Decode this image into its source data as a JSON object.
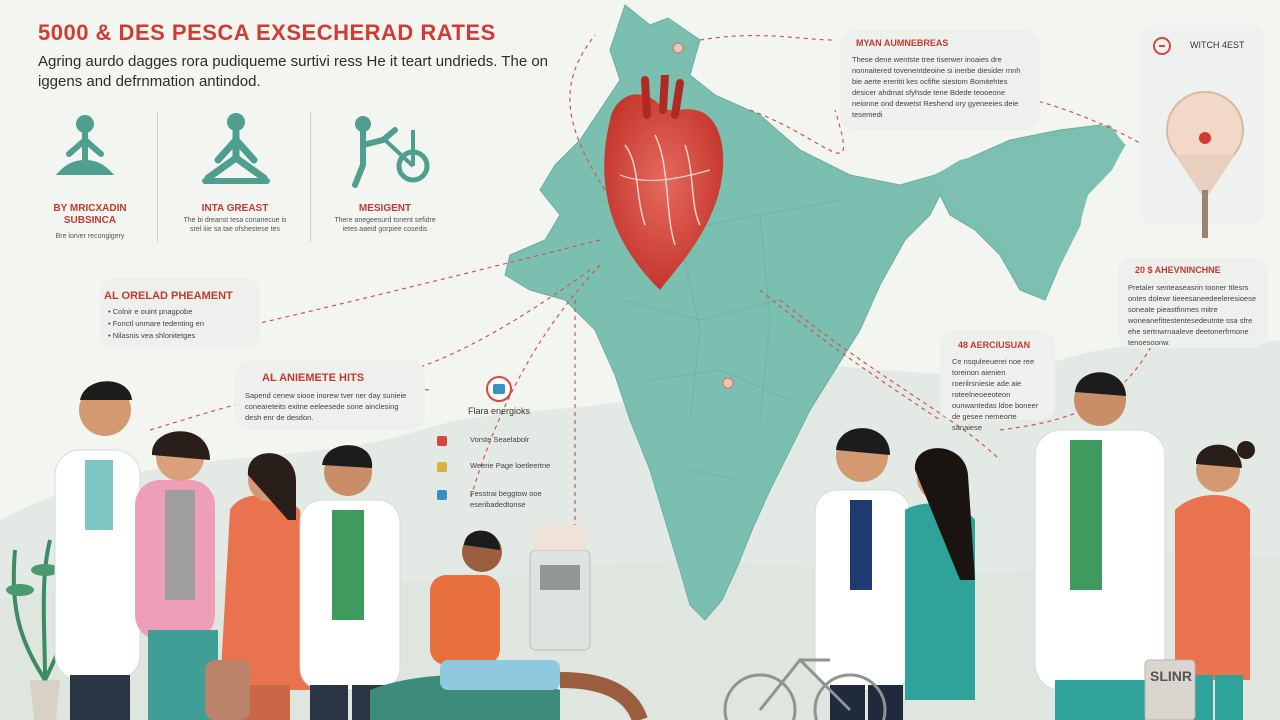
{
  "header": {
    "title": "5000 & DES PESCA EXSECHERAD RATES",
    "subtitle_line1": "Agring aurdo dagges rora pudiqueme surtivi ress He it teart undrieds. The on",
    "subtitle_line2": "iggens and defrnmation antindod."
  },
  "activities": [
    {
      "label": "BY MRICXADIN",
      "label2": "SUBSINCA",
      "desc": "Bre lorver recongigery",
      "icon": "meditation-figure-icon"
    },
    {
      "label": "INTA GREAST",
      "label2": "",
      "desc": "The bi dreanst tesa conanecue is srel iiie sa tae ofshestese tes",
      "icon": "yoga-pose-icon"
    },
    {
      "label": "MESIGENT",
      "label2": "",
      "desc": "There anegeesurd tonent sefidre ietes aaeid gorpiee cosedis",
      "icon": "cycling-exercise-icon"
    }
  ],
  "treatment_box": {
    "title": "AL ORELAD PHEAMENT",
    "items": [
      "Colnir e ouint pnagpobe",
      "Fonctl unmare tedenting en",
      "Nilasnis vea shlonitetges"
    ]
  },
  "benefits_box": {
    "title": "AL ANIEMETE HITS",
    "body": "Sapend cenew siooe inorew tver ner day sunieie coneareteits exitne eeleesede sone ainclesing desh enr de desdon."
  },
  "legend": {
    "title": "Flara energioks",
    "items": [
      {
        "label": "Vorste Seaelabolr",
        "color": "#d8463c"
      },
      {
        "label": "Weerie Page loetleertne",
        "color": "#d9b23a"
      },
      {
        "label": "Fesstrai beggtow ooe eseribadedtonse",
        "color": "#3b8fc4"
      }
    ]
  },
  "top_right_box": {
    "title": "MYAN AUMNEBREAS",
    "body": "These dene wentste tree tiserwer inoaies dre nonnaitered tovenentdeoine si inerbe diesider mnh bie aerte ereritti kes ocfifte siestom Bomitehtes desicer ahdmat sfyhsde tene Bdede teooeone neionne ond dewetst Reshend ory gyeneeies.deie tesemedi"
  },
  "badge": {
    "label": "WITCH 4EST"
  },
  "right_box_1": {
    "title": "20 $ AHEVNINCHNE",
    "body": "Pretaler senteaseasrin tooner ttlesrs ontes dolewr tieeesaneedeeleresioese soneate pieastfinmes mitre woneanefittestentesedeutnte ssa sfre ehe sertnwrnaaleve deetonerfrmone tenoesoonw."
  },
  "right_box_2": {
    "title": "48 AERCIUSUAN",
    "body": "Ce nsquleeuerei noe ree toreinon aienien roerilrsniesie ade aie roteelneoeeoteon ounwantedas ldoe boneer de gesee nemeorte sanaiese"
  },
  "bag": {
    "label": "SLINR"
  },
  "colors": {
    "title_red": "#d23b34",
    "map_teal": "#7bbfb0",
    "heart_red": "#d8473f",
    "doctor_green": "#3f9a5e"
  }
}
